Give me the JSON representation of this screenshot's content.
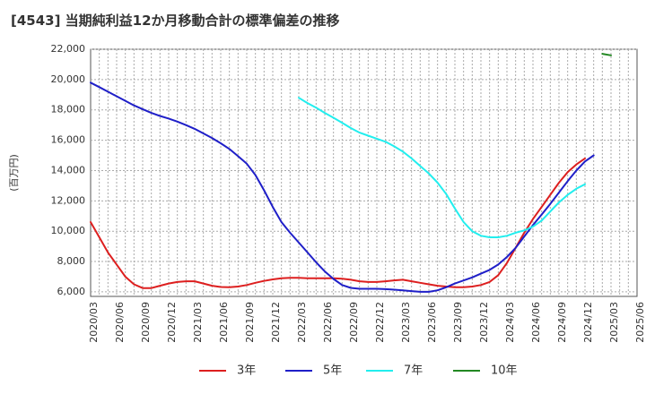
{
  "chart_data": {
    "type": "line",
    "title": "[4543]  当期純利益12か月移動合計の標準偏差の推移",
    "ylabel": "(百万円)",
    "xlabel": "",
    "ylim": [
      5700,
      22000
    ],
    "yticks": [
      6000,
      8000,
      10000,
      12000,
      14000,
      16000,
      18000,
      20000,
      22000
    ],
    "ytick_labels": [
      "6,000",
      "8,000",
      "10,000",
      "12,000",
      "14,000",
      "16,000",
      "18,000",
      "20,000",
      "22,000"
    ],
    "xticks": [
      "2020/03",
      "2020/06",
      "2020/09",
      "2020/12",
      "2021/03",
      "2021/06",
      "2021/09",
      "2021/12",
      "2022/03",
      "2022/06",
      "2022/09",
      "2022/12",
      "2023/03",
      "2023/06",
      "2023/09",
      "2023/12",
      "2024/03",
      "2024/06",
      "2024/09",
      "2024/12",
      "2025/03",
      "2025/06"
    ],
    "grid": true,
    "legend_position": "bottom",
    "series": [
      {
        "name": "3年",
        "color": "#dd1f1f",
        "start": "2020/03",
        "values": [
          10600,
          9600,
          8600,
          7800,
          7000,
          6500,
          6250,
          6250,
          6400,
          6550,
          6650,
          6700,
          6700,
          6550,
          6400,
          6320,
          6300,
          6350,
          6450,
          6600,
          6720,
          6820,
          6900,
          6930,
          6920,
          6900,
          6900,
          6900,
          6900,
          6870,
          6800,
          6700,
          6650,
          6650,
          6700,
          6760,
          6800,
          6700,
          6600,
          6500,
          6400,
          6350,
          6300,
          6300,
          6350,
          6450,
          6650,
          7100,
          7900,
          8900,
          9900,
          10800,
          11600,
          12400,
          13200,
          13900,
          14400,
          14800
        ]
      },
      {
        "name": "5年",
        "color": "#1f1fc8",
        "start": "2020/03",
        "values": [
          19800,
          19500,
          19200,
          18900,
          18600,
          18300,
          18050,
          17800,
          17600,
          17430,
          17230,
          17000,
          16750,
          16450,
          16150,
          15800,
          15420,
          14950,
          14450,
          13700,
          12700,
          11600,
          10600,
          9900,
          9250,
          8600,
          7950,
          7350,
          6850,
          6450,
          6260,
          6200,
          6200,
          6200,
          6180,
          6140,
          6100,
          6050,
          6000,
          6000,
          6100,
          6300,
          6550,
          6750,
          6950,
          7200,
          7450,
          7800,
          8300,
          8900,
          9650,
          10400,
          11100,
          11800,
          12550,
          13300,
          14000,
          14600,
          15000
        ]
      },
      {
        "name": "7年",
        "color": "#22eeee",
        "start": "2022/03",
        "values": [
          18800,
          18450,
          18150,
          17800,
          17480,
          17150,
          16800,
          16500,
          16300,
          16100,
          15900,
          15600,
          15250,
          14800,
          14300,
          13800,
          13200,
          12450,
          11500,
          10600,
          10000,
          9700,
          9600,
          9600,
          9700,
          9900,
          10050,
          10300,
          10700,
          11300,
          11900,
          12400,
          12800,
          13100
        ]
      },
      {
        "name": "10年",
        "color": "#228822",
        "start": "2025/02",
        "values": [
          21700,
          21600
        ]
      }
    ]
  }
}
